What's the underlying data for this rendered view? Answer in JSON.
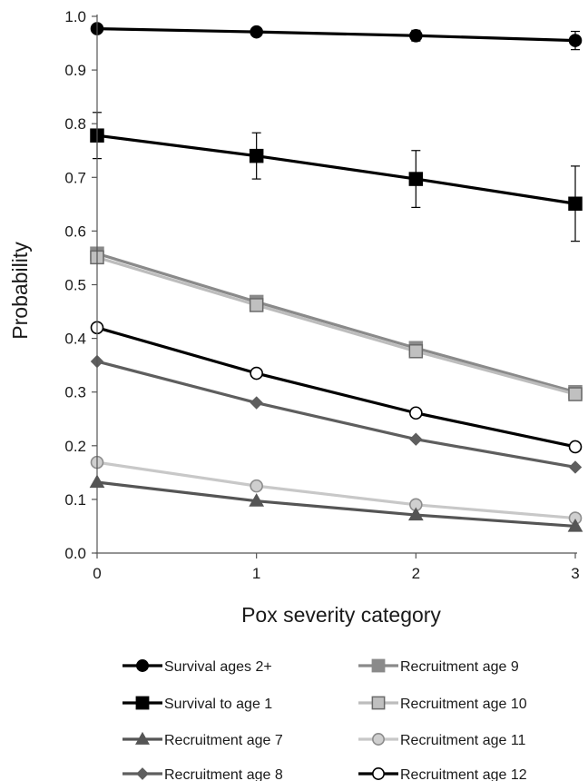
{
  "chart_data": {
    "type": "line",
    "xlabel": "Pox severity category",
    "ylabel": "Probability",
    "x": [
      0,
      1,
      2,
      3
    ],
    "x_tick_labels": [
      "0",
      "1",
      "2",
      "3"
    ],
    "ylim": [
      0.0,
      1.0
    ],
    "y_tick_labels": [
      "0.0",
      "0.1",
      "0.2",
      "0.3",
      "0.4",
      "0.5",
      "0.6",
      "0.7",
      "0.8",
      "0.9",
      "1.0"
    ],
    "grid": false,
    "legend_position": "bottom",
    "series": [
      {
        "name": "Survival ages 2+",
        "marker": "circle",
        "line_color": "#000000",
        "marker_fill": "#000000",
        "marker_edge": "#000000",
        "values": [
          0.977,
          0.971,
          0.964,
          0.955
        ],
        "error": [
          0.005,
          0.006,
          0.01,
          0.017
        ]
      },
      {
        "name": "Survival to age 1",
        "marker": "square",
        "line_color": "#000000",
        "marker_fill": "#000000",
        "marker_edge": "#000000",
        "values": [
          0.778,
          0.74,
          0.697,
          0.651
        ],
        "error": [
          0.043,
          0.043,
          0.053,
          0.07
        ]
      },
      {
        "name": "Recruitment age 7",
        "marker": "triangle",
        "line_color": "#555555",
        "marker_fill": "#555555",
        "marker_edge": "#555555",
        "values": [
          0.132,
          0.097,
          0.071,
          0.05
        ]
      },
      {
        "name": "Recruitment age 8",
        "marker": "diamond",
        "line_color": "#5e5e5e",
        "marker_fill": "#5e5e5e",
        "marker_edge": "#5e5e5e",
        "values": [
          0.357,
          0.28,
          0.212,
          0.16
        ]
      },
      {
        "name": "Recruitment age 9",
        "marker": "square",
        "line_color": "#8a8a8a",
        "marker_fill": "#8a8a8a",
        "marker_edge": "#8a8a8a",
        "values": [
          0.558,
          0.468,
          0.382,
          0.3
        ]
      },
      {
        "name": "Recruitment age 10",
        "marker": "square",
        "line_color": "#bdbdbd",
        "marker_fill": "#c0c0c0",
        "marker_edge": "#6a6a6a",
        "values": [
          0.551,
          0.462,
          0.376,
          0.296
        ]
      },
      {
        "name": "Recruitment age 11",
        "marker": "circle",
        "line_color": "#c8c8c8",
        "marker_fill": "#cfcfcf",
        "marker_edge": "#8c8c8c",
        "values": [
          0.169,
          0.125,
          0.09,
          0.065
        ]
      },
      {
        "name": "Recruitment age 12",
        "marker": "circle",
        "line_color": "#000000",
        "marker_fill": "#ffffff",
        "marker_edge": "#000000",
        "values": [
          0.42,
          0.335,
          0.261,
          0.198
        ]
      }
    ]
  }
}
